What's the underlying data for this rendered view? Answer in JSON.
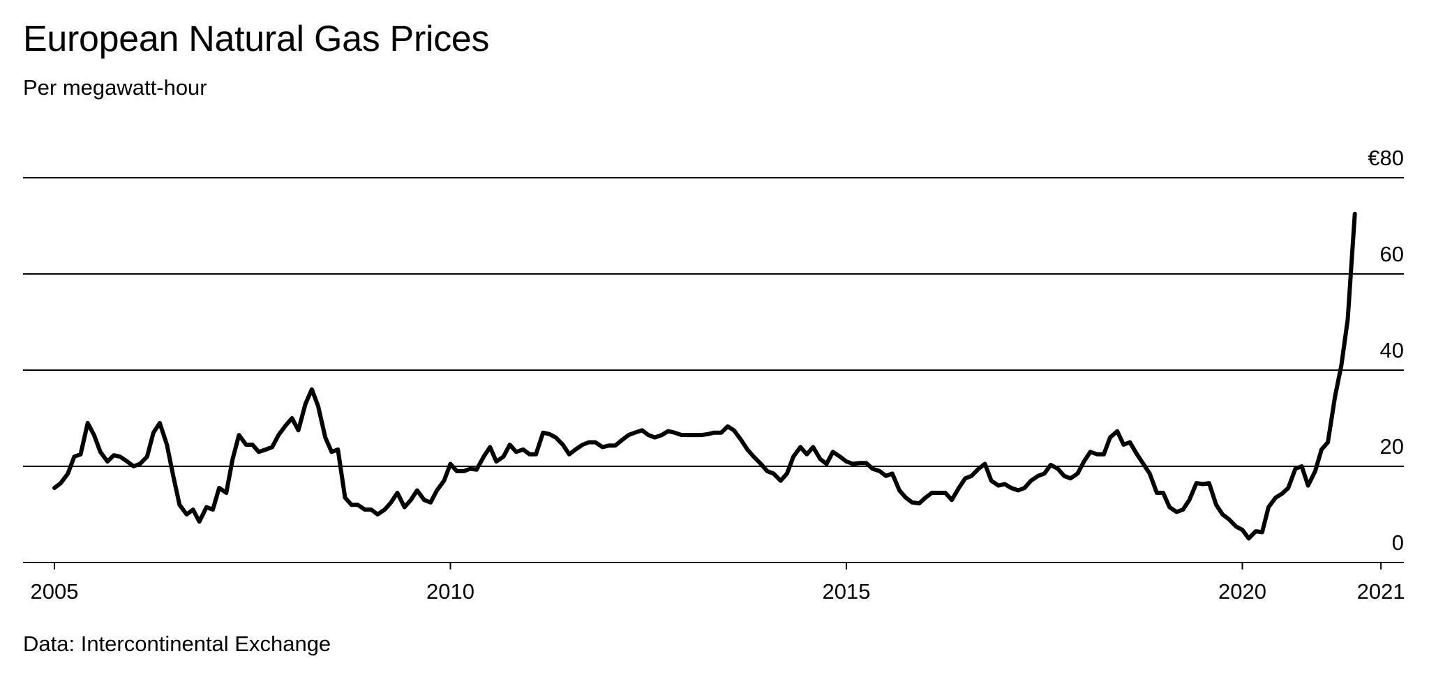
{
  "chart_data": {
    "type": "line",
    "title": "European Natural Gas Prices",
    "subtitle": "Per megawatt-hour",
    "source": "Data: Intercontinental Exchange",
    "xlabel": "",
    "ylabel": "",
    "y_ticks": [
      0,
      20,
      40,
      60,
      80
    ],
    "y_tick_labels": [
      "0",
      "20",
      "40",
      "60",
      "€80"
    ],
    "ylim": [
      0,
      80
    ],
    "x_ticks": [
      "2005",
      "2010",
      "2015",
      "2020",
      "2021"
    ],
    "x_tick_values": [
      2005.0,
      2010.0,
      2015.0,
      2020.0,
      2021.75
    ],
    "xlim": [
      2004.6,
      2022.25
    ],
    "grid": "horizontal",
    "line_color": "#000000",
    "series": [
      {
        "values": [
          [
            2005.0,
            15.5
          ],
          [
            2005.08,
            16.5
          ],
          [
            2005.17,
            18.5
          ],
          [
            2005.25,
            22.0
          ],
          [
            2005.33,
            22.5
          ],
          [
            2005.42,
            29.0
          ],
          [
            2005.5,
            26.5
          ],
          [
            2005.58,
            23.0
          ],
          [
            2005.67,
            21.0
          ],
          [
            2005.75,
            22.3
          ],
          [
            2005.83,
            22.0
          ],
          [
            2005.92,
            21.0
          ],
          [
            2006.0,
            20.0
          ],
          [
            2006.08,
            20.5
          ],
          [
            2006.17,
            22.0
          ],
          [
            2006.25,
            27.0
          ],
          [
            2006.33,
            29.0
          ],
          [
            2006.42,
            24.5
          ],
          [
            2006.5,
            18.0
          ],
          [
            2006.58,
            12.0
          ],
          [
            2006.67,
            10.0
          ],
          [
            2006.75,
            11.0
          ],
          [
            2006.83,
            8.5
          ],
          [
            2006.92,
            11.5
          ],
          [
            2007.0,
            11.0
          ],
          [
            2007.08,
            15.5
          ],
          [
            2007.17,
            14.5
          ],
          [
            2007.25,
            21.5
          ],
          [
            2007.33,
            26.5
          ],
          [
            2007.42,
            24.5
          ],
          [
            2007.5,
            24.5
          ],
          [
            2007.58,
            23.0
          ],
          [
            2007.67,
            23.5
          ],
          [
            2007.75,
            24.0
          ],
          [
            2007.83,
            26.5
          ],
          [
            2007.92,
            28.5
          ],
          [
            2008.0,
            30.0
          ],
          [
            2008.08,
            27.5
          ],
          [
            2008.17,
            33.0
          ],
          [
            2008.25,
            36.0
          ],
          [
            2008.33,
            32.5
          ],
          [
            2008.42,
            26.0
          ],
          [
            2008.5,
            23.0
          ],
          [
            2008.58,
            23.5
          ],
          [
            2008.67,
            13.5
          ],
          [
            2008.75,
            12.0
          ],
          [
            2008.83,
            12.0
          ],
          [
            2008.92,
            11.0
          ],
          [
            2009.0,
            11.0
          ],
          [
            2009.08,
            10.0
          ],
          [
            2009.17,
            11.0
          ],
          [
            2009.25,
            12.5
          ],
          [
            2009.33,
            14.5
          ],
          [
            2009.42,
            11.5
          ],
          [
            2009.5,
            13.0
          ],
          [
            2009.58,
            15.0
          ],
          [
            2009.67,
            13.0
          ],
          [
            2009.75,
            12.5
          ],
          [
            2009.83,
            15.0
          ],
          [
            2009.92,
            17.0
          ],
          [
            2010.0,
            20.5
          ],
          [
            2010.08,
            19.0
          ],
          [
            2010.17,
            19.0
          ],
          [
            2010.25,
            19.5
          ],
          [
            2010.33,
            19.3
          ],
          [
            2010.42,
            22.0
          ],
          [
            2010.5,
            24.0
          ],
          [
            2010.58,
            21.0
          ],
          [
            2010.67,
            22.0
          ],
          [
            2010.75,
            24.5
          ],
          [
            2010.83,
            23.0
          ],
          [
            2010.92,
            23.5
          ],
          [
            2011.0,
            22.5
          ],
          [
            2011.08,
            22.5
          ],
          [
            2011.17,
            27.0
          ],
          [
            2011.25,
            26.7
          ],
          [
            2011.33,
            26.0
          ],
          [
            2011.42,
            24.5
          ],
          [
            2011.5,
            22.5
          ],
          [
            2011.58,
            23.5
          ],
          [
            2011.67,
            24.5
          ],
          [
            2011.75,
            25.0
          ],
          [
            2011.83,
            25.0
          ],
          [
            2011.92,
            24.0
          ],
          [
            2012.0,
            24.3
          ],
          [
            2012.08,
            24.3
          ],
          [
            2012.17,
            25.5
          ],
          [
            2012.25,
            26.5
          ],
          [
            2012.33,
            27.0
          ],
          [
            2012.42,
            27.5
          ],
          [
            2012.5,
            26.5
          ],
          [
            2012.58,
            26.0
          ],
          [
            2012.67,
            26.5
          ],
          [
            2012.75,
            27.3
          ],
          [
            2012.83,
            27.0
          ],
          [
            2012.92,
            26.5
          ],
          [
            2013.0,
            26.5
          ],
          [
            2013.08,
            26.5
          ],
          [
            2013.17,
            26.5
          ],
          [
            2013.25,
            26.7
          ],
          [
            2013.33,
            27.0
          ],
          [
            2013.42,
            27.0
          ],
          [
            2013.5,
            28.3
          ],
          [
            2013.58,
            27.5
          ],
          [
            2013.67,
            25.5
          ],
          [
            2013.75,
            23.5
          ],
          [
            2013.83,
            22.0
          ],
          [
            2013.92,
            20.5
          ],
          [
            2014.0,
            19.0
          ],
          [
            2014.08,
            18.5
          ],
          [
            2014.17,
            17.0
          ],
          [
            2014.25,
            18.5
          ],
          [
            2014.33,
            22.0
          ],
          [
            2014.42,
            24.0
          ],
          [
            2014.5,
            22.5
          ],
          [
            2014.58,
            24.0
          ],
          [
            2014.67,
            21.5
          ],
          [
            2014.75,
            20.5
          ],
          [
            2014.83,
            23.0
          ],
          [
            2014.92,
            22.0
          ],
          [
            2015.0,
            21.0
          ],
          [
            2015.08,
            20.5
          ],
          [
            2015.17,
            20.7
          ],
          [
            2015.25,
            20.7
          ],
          [
            2015.33,
            19.5
          ],
          [
            2015.42,
            19.0
          ],
          [
            2015.5,
            18.0
          ],
          [
            2015.58,
            18.5
          ],
          [
            2015.67,
            15.0
          ],
          [
            2015.75,
            13.5
          ],
          [
            2015.83,
            12.5
          ],
          [
            2015.92,
            12.3
          ],
          [
            2016.0,
            13.5
          ],
          [
            2016.08,
            14.5
          ],
          [
            2016.17,
            14.5
          ],
          [
            2016.25,
            14.5
          ],
          [
            2016.33,
            13.0
          ],
          [
            2016.42,
            15.5
          ],
          [
            2016.5,
            17.5
          ],
          [
            2016.58,
            18.0
          ],
          [
            2016.67,
            19.5
          ],
          [
            2016.75,
            20.5
          ],
          [
            2016.83,
            17.0
          ],
          [
            2016.92,
            16.0
          ],
          [
            2017.0,
            16.3
          ],
          [
            2017.08,
            15.5
          ],
          [
            2017.17,
            15.0
          ],
          [
            2017.25,
            15.5
          ],
          [
            2017.33,
            17.0
          ],
          [
            2017.42,
            18.0
          ],
          [
            2017.5,
            18.5
          ],
          [
            2017.58,
            20.3
          ],
          [
            2017.67,
            19.5
          ],
          [
            2017.75,
            18.0
          ],
          [
            2017.83,
            17.5
          ],
          [
            2017.92,
            18.5
          ],
          [
            2018.0,
            21.0
          ],
          [
            2018.08,
            23.0
          ],
          [
            2018.17,
            22.5
          ],
          [
            2018.25,
            22.5
          ],
          [
            2018.33,
            26.0
          ],
          [
            2018.42,
            27.3
          ],
          [
            2018.5,
            24.5
          ],
          [
            2018.58,
            25.0
          ],
          [
            2018.67,
            22.5
          ],
          [
            2018.75,
            20.5
          ],
          [
            2018.83,
            18.5
          ],
          [
            2018.92,
            14.5
          ],
          [
            2019.0,
            14.5
          ],
          [
            2019.08,
            11.5
          ],
          [
            2019.17,
            10.5
          ],
          [
            2019.25,
            11.0
          ],
          [
            2019.33,
            13.0
          ],
          [
            2019.42,
            16.5
          ],
          [
            2019.5,
            16.3
          ],
          [
            2019.58,
            16.5
          ],
          [
            2019.67,
            12.0
          ],
          [
            2019.75,
            10.0
          ],
          [
            2019.83,
            9.0
          ],
          [
            2019.92,
            7.5
          ],
          [
            2020.0,
            6.8
          ],
          [
            2020.08,
            5.0
          ],
          [
            2020.17,
            6.5
          ],
          [
            2020.25,
            6.3
          ],
          [
            2020.33,
            11.5
          ],
          [
            2020.42,
            13.5
          ],
          [
            2020.5,
            14.3
          ],
          [
            2020.58,
            15.5
          ],
          [
            2020.67,
            19.5
          ],
          [
            2020.75,
            20.0
          ],
          [
            2020.83,
            16.0
          ],
          [
            2020.92,
            19.0
          ],
          [
            2021.0,
            23.5
          ],
          [
            2021.08,
            25.0
          ],
          [
            2021.17,
            34.5
          ],
          [
            2021.25,
            41.0
          ],
          [
            2021.33,
            50.5
          ],
          [
            2021.42,
            72.5
          ]
        ]
      }
    ]
  }
}
